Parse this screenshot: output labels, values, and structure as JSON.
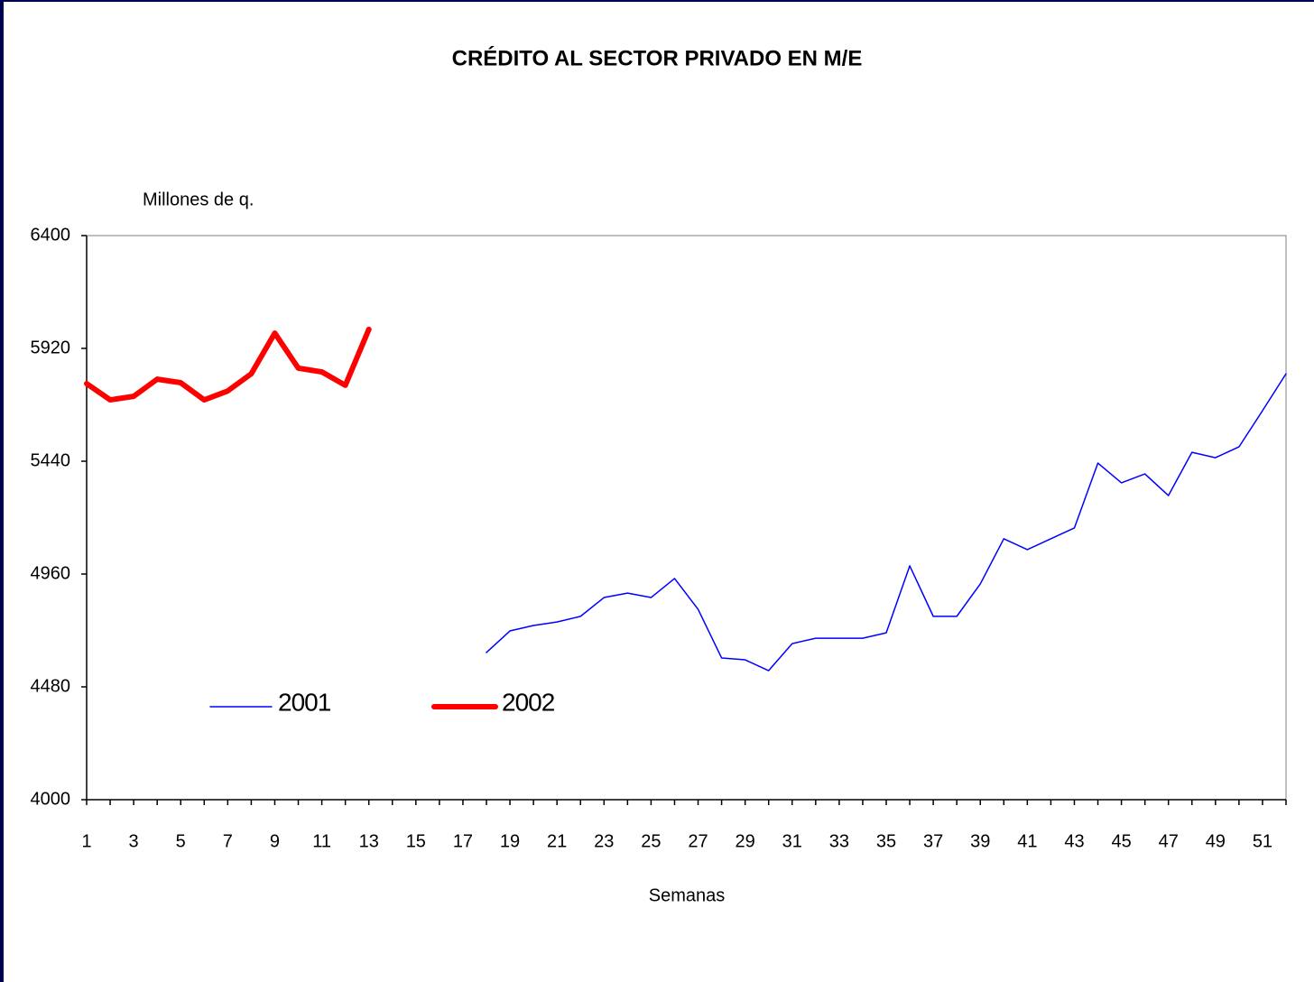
{
  "chart_data": {
    "type": "line",
    "title": "CRÉDITO AL SECTOR PRIVADO EN M/E",
    "y_label": "Millones de q.",
    "x_label": "Semanas",
    "categories": [
      1,
      null,
      3,
      null,
      5,
      null,
      7,
      null,
      9,
      null,
      11,
      null,
      13,
      null,
      15,
      null,
      17,
      null,
      19,
      null,
      21,
      null,
      23,
      null,
      25,
      null,
      27,
      null,
      29,
      null,
      31,
      null,
      33,
      null,
      35,
      null,
      37,
      null,
      39,
      null,
      41,
      null,
      43,
      null,
      45,
      null,
      47,
      null,
      49,
      null,
      51,
      null
    ],
    "series": [
      {
        "name": "2001",
        "color": "#0000ff",
        "width": 1.5,
        "values": [
          null,
          null,
          null,
          null,
          null,
          null,
          null,
          null,
          null,
          null,
          null,
          null,
          null,
          null,
          null,
          null,
          null,
          4626,
          4718,
          4741,
          4756,
          4780,
          4860,
          4879,
          4860,
          4941,
          4810,
          4603,
          4595,
          4549,
          4664,
          4687,
          4687,
          4687,
          4710,
          4995,
          4780,
          4780,
          4918,
          5110,
          5064,
          5110,
          5156,
          5432,
          5348,
          5386,
          5294,
          5478,
          5455,
          5501,
          5655,
          5812
        ]
      },
      {
        "name": "2002",
        "color": "#ff0000",
        "width": 6,
        "values": [
          5770,
          5701,
          5716,
          5789,
          5774,
          5701,
          5739,
          5812,
          5985,
          5836,
          5820,
          5763,
          6001,
          null,
          null,
          null,
          null,
          null,
          null,
          null,
          null,
          null,
          null,
          null,
          null,
          null,
          null,
          null,
          null,
          null,
          null,
          null,
          null,
          null,
          null,
          null,
          null,
          null,
          null,
          null,
          null,
          null,
          null,
          null,
          null,
          null,
          null,
          null,
          null,
          null,
          null,
          null
        ]
      }
    ],
    "ylim": [
      4000,
      6400
    ],
    "yticks": [
      4000,
      4480,
      4960,
      5440,
      5920,
      6400
    ]
  }
}
